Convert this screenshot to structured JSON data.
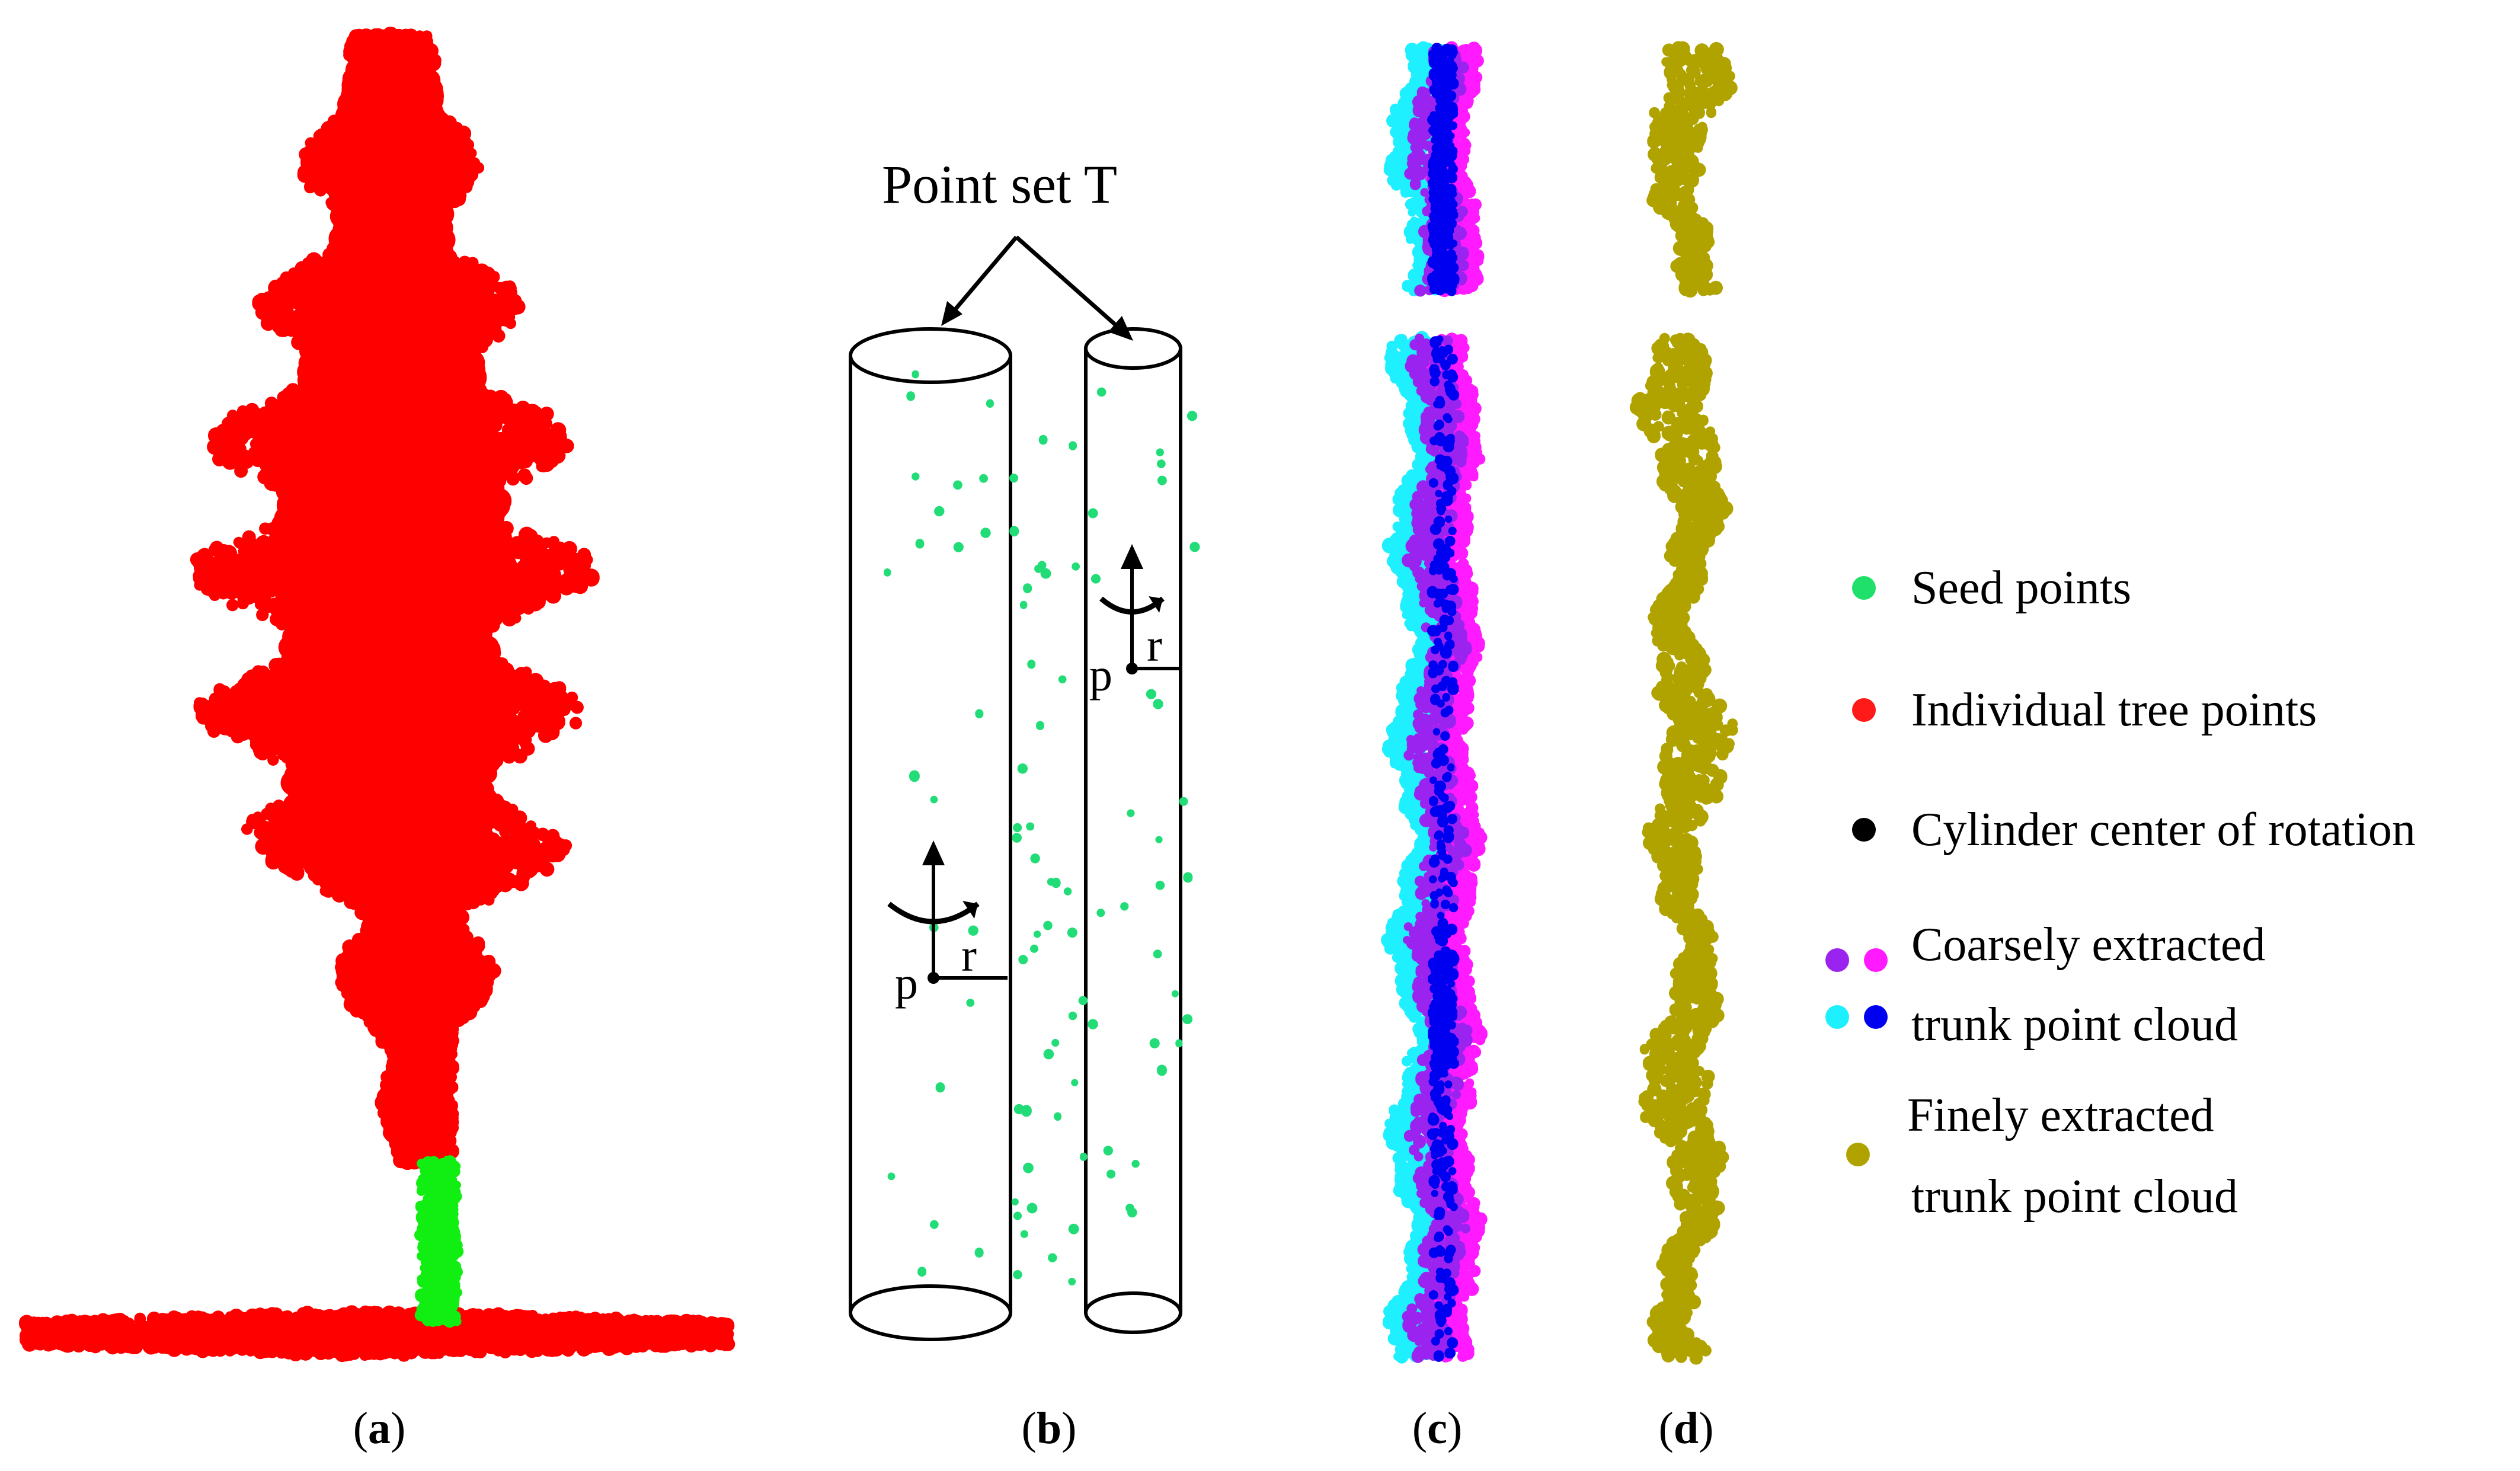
{
  "panels": {
    "a": {
      "open": "(",
      "letter": "a",
      "close": ")"
    },
    "b": {
      "open": "(",
      "letter": "b",
      "close": ")"
    },
    "c": {
      "open": "(",
      "letter": "c",
      "close": ")"
    },
    "d": {
      "open": "(",
      "letter": "d",
      "close": ")"
    }
  },
  "diagram_b": {
    "title": "Point set T",
    "label_p": "p",
    "label_r": "r"
  },
  "legend": [
    {
      "label_lines": [
        "Seed points"
      ],
      "colors": [
        "#1ee06a"
      ]
    },
    {
      "label_lines": [
        "Individual tree points"
      ],
      "colors": [
        "#ff1a1a"
      ]
    },
    {
      "label_lines": [
        "Cylinder center of rotation"
      ],
      "colors": [
        "#000000"
      ]
    },
    {
      "label_lines": [
        "Coarsely extracted",
        "trunk point cloud"
      ],
      "colors": [
        "#9b23f0",
        "#ff1aff",
        "#1ef0ff",
        "#0000f0"
      ]
    },
    {
      "label_lines": [
        "Finely extracted",
        "trunk point cloud"
      ],
      "colors": [
        "#b0a300"
      ]
    }
  ],
  "colors": {
    "tree": "#ff0000",
    "seed": "#11ee11",
    "seed_b": "#22dd77",
    "purple": "#9b23f0",
    "magenta": "#ff1aff",
    "cyan": "#1ef0ff",
    "blue": "#0000f0",
    "olive": "#b0a300"
  }
}
